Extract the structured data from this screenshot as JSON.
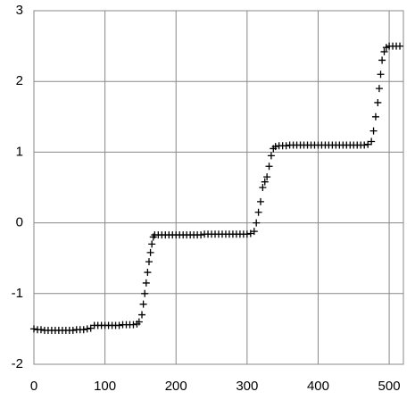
{
  "chart_data": {
    "type": "scatter",
    "marker": "plus",
    "color": "#000000",
    "x": [
      0,
      5,
      10,
      15,
      20,
      25,
      30,
      35,
      40,
      45,
      50,
      55,
      60,
      65,
      70,
      75,
      80,
      85,
      90,
      95,
      100,
      105,
      110,
      115,
      120,
      125,
      130,
      135,
      140,
      145,
      148,
      152,
      154,
      156,
      158,
      160,
      162,
      164,
      166,
      168,
      170,
      175,
      180,
      185,
      190,
      195,
      200,
      205,
      210,
      215,
      220,
      225,
      230,
      235,
      240,
      245,
      250,
      255,
      260,
      265,
      270,
      275,
      280,
      285,
      290,
      295,
      300,
      305,
      310,
      313,
      316,
      319,
      322,
      325,
      328,
      331,
      334,
      337,
      340,
      345,
      350,
      355,
      360,
      365,
      370,
      375,
      380,
      385,
      390,
      395,
      400,
      405,
      410,
      415,
      420,
      425,
      430,
      435,
      440,
      445,
      450,
      455,
      460,
      465,
      470,
      475,
      478,
      481,
      484,
      486,
      488,
      490,
      493,
      496,
      500,
      505,
      510,
      515
    ],
    "values": [
      -1.5,
      -1.51,
      -1.51,
      -1.52,
      -1.52,
      -1.52,
      -1.52,
      -1.52,
      -1.52,
      -1.52,
      -1.52,
      -1.52,
      -1.51,
      -1.51,
      -1.51,
      -1.5,
      -1.49,
      -1.45,
      -1.45,
      -1.45,
      -1.45,
      -1.45,
      -1.45,
      -1.45,
      -1.45,
      -1.44,
      -1.44,
      -1.44,
      -1.44,
      -1.43,
      -1.4,
      -1.3,
      -1.15,
      -1.0,
      -0.85,
      -0.7,
      -0.55,
      -0.42,
      -0.3,
      -0.2,
      -0.17,
      -0.17,
      -0.17,
      -0.17,
      -0.17,
      -0.17,
      -0.17,
      -0.17,
      -0.17,
      -0.17,
      -0.17,
      -0.17,
      -0.17,
      -0.17,
      -0.16,
      -0.16,
      -0.16,
      -0.16,
      -0.16,
      -0.16,
      -0.16,
      -0.16,
      -0.16,
      -0.16,
      -0.16,
      -0.16,
      -0.16,
      -0.15,
      -0.12,
      0.0,
      0.15,
      0.3,
      0.5,
      0.58,
      0.65,
      0.8,
      0.95,
      1.05,
      1.08,
      1.09,
      1.09,
      1.09,
      1.1,
      1.1,
      1.1,
      1.1,
      1.1,
      1.1,
      1.1,
      1.1,
      1.1,
      1.1,
      1.1,
      1.1,
      1.1,
      1.1,
      1.1,
      1.1,
      1.1,
      1.1,
      1.1,
      1.1,
      1.1,
      1.1,
      1.11,
      1.15,
      1.3,
      1.5,
      1.7,
      1.9,
      2.1,
      2.3,
      2.42,
      2.48,
      2.5,
      2.5,
      2.5,
      2.5
    ],
    "xlim": [
      0,
      520
    ],
    "xticks": [
      0,
      100,
      200,
      300,
      400,
      500
    ],
    "ylim": [
      -2,
      3
    ],
    "yticks": [
      -2,
      -1,
      0,
      1,
      2,
      3
    ],
    "grid": true
  }
}
